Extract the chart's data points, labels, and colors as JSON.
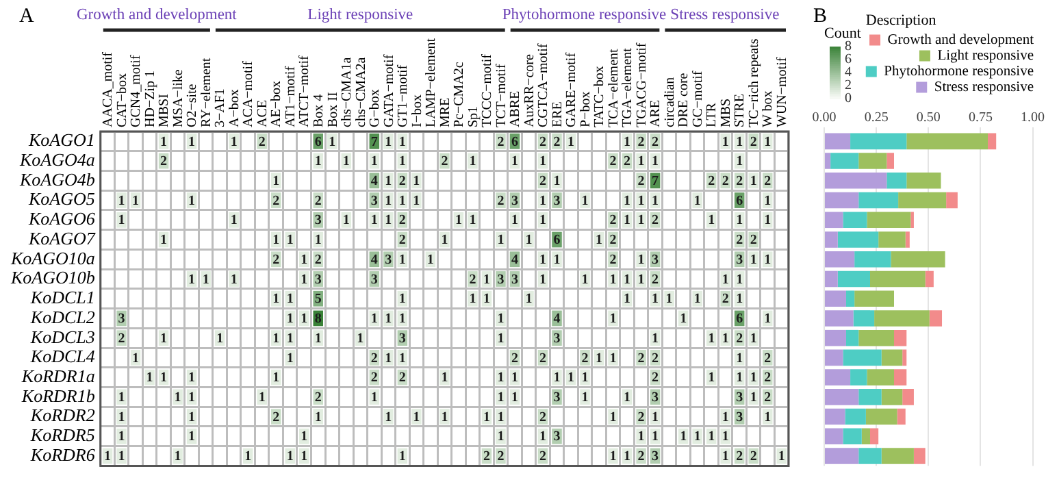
{
  "chart_data": [
    {
      "type": "heatmap",
      "annotations": [
        "A",
        "Growth and development",
        "Light responsive",
        "Phytohormone responsive",
        "Stress responsive"
      ],
      "categories": [
        "AACA_motif",
        "CAT−box",
        "GCN4_motif",
        "HD−Zip 1",
        "MBSI",
        "MSA−like",
        "O2−site",
        "RY−element",
        "3−AF1",
        "A−box",
        "ACA−motif",
        "ACE",
        "AE−box",
        "AT1−motif",
        "ATCT−motif",
        "Box 4",
        "Box II",
        "chs−CMA1a",
        "chs−CMA2a",
        "G−box",
        "GATA−motif",
        "GT1−motif",
        "I−box",
        "LAMP−element",
        "MRE",
        "Pc−CMA2c",
        "Sp1",
        "TCCC−motif",
        "TCT−motif",
        "ABRE",
        "AuxRR−core",
        "CGTCA−motif",
        "ERE",
        "GARE−motif",
        "P−box",
        "TATC−box",
        "TCA−element",
        "TGA−element",
        "TGACG−motif",
        "ARE",
        "circadian",
        "DRE core",
        "GC−motif",
        "LTR",
        "MBS",
        "STRE",
        "TC−rich repeats",
        "W box",
        "WUN−motif"
      ],
      "y_categories": [
        "KoAGO1",
        "KoAGO4a",
        "KoAGO4b",
        "KoAGO5",
        "KoAGO6",
        "KoAGO7",
        "KoAGO10a",
        "KoAGO10b",
        "KoDCL1",
        "KoDCL2",
        "KoDCL3",
        "KoDCL4",
        "KoRDR1a",
        "KoRDR1b",
        "KoRDR2",
        "KoRDR5",
        "KoRDR6"
      ],
      "cells": [
        [
          null,
          null,
          null,
          null,
          1,
          null,
          1,
          null,
          null,
          1,
          null,
          2,
          null,
          null,
          null,
          6,
          1,
          null,
          null,
          7,
          1,
          1,
          null,
          null,
          null,
          null,
          null,
          null,
          2,
          6,
          null,
          2,
          2,
          1,
          null,
          null,
          null,
          1,
          2,
          2,
          null,
          null,
          null,
          null,
          1,
          1,
          2,
          1,
          null
        ],
        [
          null,
          null,
          null,
          null,
          2,
          null,
          null,
          null,
          null,
          null,
          null,
          null,
          null,
          null,
          null,
          1,
          null,
          1,
          null,
          1,
          null,
          1,
          null,
          null,
          2,
          null,
          1,
          null,
          null,
          1,
          null,
          1,
          null,
          null,
          null,
          null,
          2,
          2,
          1,
          1,
          null,
          null,
          null,
          null,
          null,
          1,
          null,
          null,
          null
        ],
        [
          null,
          null,
          null,
          null,
          null,
          null,
          null,
          null,
          null,
          null,
          null,
          null,
          1,
          null,
          null,
          null,
          null,
          null,
          null,
          4,
          1,
          2,
          1,
          null,
          null,
          null,
          null,
          null,
          null,
          null,
          null,
          2,
          1,
          null,
          null,
          null,
          null,
          null,
          2,
          7,
          null,
          null,
          null,
          2,
          2,
          2,
          1,
          2,
          null
        ],
        [
          null,
          1,
          1,
          null,
          null,
          null,
          1,
          null,
          null,
          null,
          null,
          null,
          2,
          null,
          null,
          2,
          null,
          null,
          null,
          3,
          1,
          1,
          1,
          null,
          null,
          null,
          null,
          null,
          2,
          3,
          null,
          1,
          3,
          null,
          1,
          null,
          null,
          1,
          1,
          1,
          null,
          null,
          1,
          null,
          null,
          6,
          null,
          1,
          null
        ],
        [
          null,
          1,
          null,
          null,
          null,
          null,
          null,
          null,
          null,
          1,
          null,
          null,
          null,
          null,
          null,
          3,
          null,
          1,
          null,
          1,
          1,
          2,
          null,
          null,
          null,
          1,
          1,
          null,
          null,
          1,
          null,
          1,
          null,
          null,
          null,
          null,
          2,
          1,
          1,
          2,
          null,
          null,
          null,
          1,
          null,
          1,
          null,
          1,
          null
        ],
        [
          null,
          null,
          null,
          null,
          1,
          null,
          null,
          null,
          null,
          null,
          null,
          null,
          1,
          1,
          null,
          1,
          null,
          null,
          null,
          null,
          null,
          2,
          null,
          null,
          1,
          null,
          null,
          null,
          1,
          null,
          1,
          null,
          6,
          null,
          null,
          1,
          2,
          null,
          null,
          null,
          null,
          null,
          null,
          null,
          null,
          2,
          2,
          null,
          null
        ],
        [
          null,
          null,
          null,
          null,
          null,
          null,
          null,
          null,
          null,
          null,
          null,
          null,
          2,
          null,
          1,
          2,
          null,
          null,
          null,
          4,
          3,
          1,
          null,
          1,
          null,
          null,
          null,
          null,
          null,
          4,
          null,
          1,
          1,
          null,
          null,
          null,
          2,
          null,
          1,
          3,
          null,
          null,
          null,
          null,
          null,
          3,
          1,
          1,
          null
        ],
        [
          null,
          null,
          null,
          null,
          null,
          null,
          1,
          1,
          null,
          1,
          null,
          null,
          null,
          null,
          1,
          3,
          null,
          null,
          null,
          3,
          null,
          null,
          null,
          null,
          null,
          null,
          2,
          1,
          3,
          3,
          null,
          1,
          null,
          null,
          1,
          null,
          1,
          1,
          1,
          2,
          null,
          null,
          null,
          null,
          1,
          1,
          null,
          null,
          null
        ],
        [
          null,
          null,
          null,
          null,
          null,
          null,
          null,
          null,
          null,
          null,
          null,
          null,
          1,
          1,
          null,
          5,
          null,
          null,
          null,
          null,
          null,
          1,
          null,
          null,
          null,
          null,
          1,
          1,
          null,
          null,
          1,
          null,
          null,
          null,
          null,
          null,
          null,
          1,
          null,
          1,
          1,
          null,
          1,
          null,
          2,
          1,
          null,
          null,
          null
        ],
        [
          null,
          3,
          null,
          null,
          null,
          null,
          null,
          null,
          null,
          null,
          null,
          null,
          null,
          1,
          1,
          8,
          null,
          null,
          null,
          1,
          1,
          1,
          null,
          null,
          null,
          null,
          null,
          null,
          1,
          null,
          null,
          null,
          4,
          null,
          null,
          null,
          1,
          null,
          null,
          null,
          null,
          1,
          null,
          null,
          null,
          6,
          null,
          1,
          null
        ],
        [
          null,
          2,
          null,
          null,
          1,
          null,
          null,
          null,
          1,
          null,
          null,
          null,
          1,
          1,
          null,
          1,
          null,
          null,
          1,
          null,
          null,
          3,
          null,
          null,
          null,
          null,
          null,
          null,
          1,
          null,
          null,
          null,
          3,
          null,
          null,
          null,
          null,
          null,
          null,
          1,
          null,
          null,
          null,
          1,
          1,
          2,
          1,
          null,
          null
        ],
        [
          null,
          null,
          1,
          null,
          null,
          null,
          null,
          null,
          null,
          null,
          null,
          null,
          null,
          1,
          null,
          null,
          null,
          null,
          null,
          2,
          1,
          1,
          null,
          null,
          null,
          null,
          null,
          null,
          null,
          2,
          null,
          2,
          null,
          null,
          2,
          1,
          1,
          null,
          2,
          2,
          null,
          null,
          null,
          null,
          null,
          1,
          null,
          2,
          null
        ],
        [
          null,
          null,
          null,
          1,
          1,
          null,
          1,
          null,
          null,
          null,
          null,
          null,
          1,
          null,
          null,
          null,
          null,
          null,
          null,
          2,
          null,
          2,
          null,
          null,
          1,
          null,
          null,
          null,
          1,
          1,
          null,
          null,
          1,
          1,
          1,
          null,
          null,
          null,
          null,
          2,
          null,
          null,
          null,
          1,
          null,
          1,
          1,
          2,
          null
        ],
        [
          null,
          1,
          null,
          null,
          null,
          1,
          1,
          null,
          null,
          null,
          null,
          1,
          null,
          null,
          null,
          2,
          null,
          null,
          null,
          1,
          null,
          null,
          null,
          null,
          null,
          null,
          null,
          null,
          1,
          1,
          null,
          null,
          3,
          null,
          1,
          null,
          null,
          1,
          null,
          3,
          null,
          null,
          null,
          null,
          null,
          3,
          1,
          2,
          null
        ],
        [
          null,
          1,
          null,
          null,
          null,
          null,
          1,
          null,
          null,
          null,
          null,
          null,
          2,
          null,
          null,
          1,
          null,
          null,
          null,
          null,
          1,
          null,
          1,
          null,
          1,
          null,
          null,
          1,
          1,
          null,
          null,
          2,
          null,
          null,
          null,
          null,
          1,
          null,
          2,
          1,
          null,
          null,
          null,
          null,
          1,
          3,
          null,
          1,
          null
        ],
        [
          null,
          1,
          null,
          null,
          null,
          null,
          1,
          null,
          null,
          null,
          null,
          null,
          null,
          null,
          1,
          null,
          null,
          null,
          null,
          null,
          null,
          null,
          null,
          null,
          null,
          null,
          null,
          null,
          1,
          null,
          null,
          1,
          3,
          null,
          null,
          null,
          null,
          null,
          1,
          1,
          null,
          1,
          1,
          1,
          1,
          null,
          null,
          null,
          null
        ],
        [
          1,
          1,
          null,
          null,
          null,
          1,
          null,
          null,
          null,
          null,
          1,
          null,
          null,
          1,
          1,
          null,
          null,
          null,
          null,
          null,
          null,
          1,
          null,
          null,
          null,
          null,
          null,
          2,
          2,
          null,
          null,
          2,
          null,
          null,
          null,
          null,
          1,
          1,
          2,
          3,
          null,
          null,
          null,
          null,
          1,
          2,
          2,
          null,
          1
        ]
      ],
      "clim": [
        0,
        8
      ],
      "cticks": [
        0,
        2,
        4,
        6,
        8
      ],
      "clabel": "Count",
      "data_labels": true
    },
    {
      "type": "bar",
      "orientation": "horizontal",
      "stacked": true,
      "annotations": [
        "B"
      ],
      "categories": [
        null,
        null,
        null,
        null,
        null,
        null,
        null,
        null,
        null,
        null,
        null,
        null,
        null,
        null,
        null,
        null,
        null
      ],
      "series": [
        {
          "name": "Stress responsive",
          "color": "#b39ddb",
          "values": [
            0.125,
            0.03,
            0.3,
            0.165,
            0.09,
            0.065,
            0.145,
            0.065,
            0.105,
            0.14,
            0.105,
            0.09,
            0.125,
            0.165,
            0.1,
            0.09,
            0.165
          ]
        },
        {
          "name": "Phytohormone responsive",
          "color": "#4ecdc4",
          "values": [
            0.27,
            0.135,
            0.095,
            0.19,
            0.115,
            0.195,
            0.175,
            0.155,
            0.04,
            0.1,
            0.06,
            0.185,
            0.08,
            0.11,
            0.1,
            0.09,
            0.11
          ]
        },
        {
          "name": "Light responsive",
          "color": "#9dc05e",
          "values": [
            0.39,
            0.135,
            0.165,
            0.23,
            0.21,
            0.13,
            0.26,
            0.265,
            0.19,
            0.265,
            0.17,
            0.1,
            0.13,
            0.1,
            0.15,
            0.04,
            0.155
          ]
        },
        {
          "name": "Growth and development",
          "color": "#f28b8b",
          "values": [
            0.04,
            0.035,
            null,
            0.055,
            0.015,
            0.02,
            null,
            0.04,
            null,
            0.06,
            0.06,
            0.02,
            0.06,
            0.055,
            0.04,
            0.04,
            0.055
          ]
        }
      ],
      "xlim": [
        0,
        1
      ],
      "xticks": [
        {
          "value": 0,
          "label": "0.00"
        },
        {
          "value": 0.25,
          "label": "0.25"
        },
        {
          "value": 0.5,
          "label": "0.50"
        },
        {
          "value": 0.75,
          "label": "0.75"
        },
        {
          "value": 1,
          "label": "1.00"
        }
      ],
      "grid": "x",
      "legend": "top right",
      "legend_title": "Description",
      "tick_labels": "x"
    }
  ]
}
